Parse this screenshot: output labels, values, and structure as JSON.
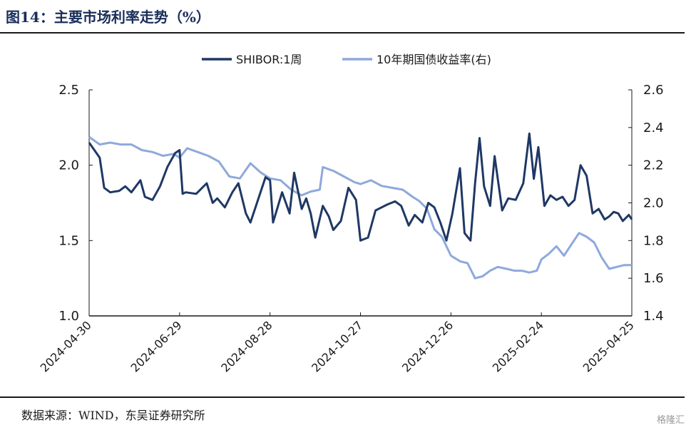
{
  "header": {
    "title": "图14：主要市场利率走势（%）"
  },
  "footer": {
    "source": "数据来源：WIND，东吴证券研究所",
    "watermark": "格隆汇"
  },
  "chart_data": {
    "type": "line",
    "title": "主要市场利率走势（%）",
    "x_ticks": [
      "2024-04-30",
      "2024-06-29",
      "2024-08-28",
      "2024-10-27",
      "2024-12-26",
      "2025-02-24",
      "2025-04-25"
    ],
    "y_left": {
      "range": [
        1.0,
        2.5
      ],
      "ticks": [
        "1.0",
        "1.5",
        "2.0",
        "2.5"
      ]
    },
    "y_right": {
      "range": [
        1.4,
        2.6
      ],
      "ticks": [
        "1.4",
        "1.6",
        "1.8",
        "2.0",
        "2.2",
        "2.4",
        "2.6"
      ]
    },
    "legend_position": "top-center",
    "series": [
      {
        "name": "SHIBOR:1周",
        "axis": "left",
        "color": "#1f3864",
        "x": [
          "2024-04-30",
          "2024-05-07",
          "2024-05-10",
          "2024-05-14",
          "2024-05-20",
          "2024-05-24",
          "2024-05-28",
          "2024-06-03",
          "2024-06-06",
          "2024-06-11",
          "2024-06-16",
          "2024-06-21",
          "2024-06-26",
          "2024-06-29",
          "2024-07-01",
          "2024-07-03",
          "2024-07-10",
          "2024-07-17",
          "2024-07-21",
          "2024-07-24",
          "2024-07-29",
          "2024-08-03",
          "2024-08-07",
          "2024-08-12",
          "2024-08-15",
          "2024-08-21",
          "2024-08-25",
          "2024-08-28",
          "2024-08-30",
          "2024-09-05",
          "2024-09-10",
          "2024-09-13",
          "2024-09-18",
          "2024-09-21",
          "2024-09-24",
          "2024-09-27",
          "2024-10-02",
          "2024-10-06",
          "2024-10-09",
          "2024-10-14",
          "2024-10-19",
          "2024-10-24",
          "2024-10-27",
          "2024-11-01",
          "2024-11-06",
          "2024-11-10",
          "2024-11-14",
          "2024-11-19",
          "2024-11-23",
          "2024-11-28",
          "2024-12-02",
          "2024-12-07",
          "2024-12-11",
          "2024-12-15",
          "2024-12-19",
          "2024-12-23",
          "2024-12-27",
          "2025-01-01",
          "2025-01-04",
          "2025-01-08",
          "2025-01-11",
          "2025-01-14",
          "2025-01-17",
          "2025-01-21",
          "2025-01-24",
          "2025-01-29",
          "2025-02-02",
          "2025-02-07",
          "2025-02-12",
          "2025-02-16",
          "2025-02-19",
          "2025-02-22",
          "2025-02-26",
          "2025-03-02",
          "2025-03-06",
          "2025-03-10",
          "2025-03-14",
          "2025-03-18",
          "2025-03-22",
          "2025-03-26",
          "2025-03-30",
          "2025-04-03",
          "2025-04-07",
          "2025-04-10",
          "2025-04-13",
          "2025-04-16",
          "2025-04-19",
          "2025-04-23",
          "2025-04-25"
        ],
        "values": [
          2.15,
          2.05,
          1.85,
          1.82,
          1.83,
          1.86,
          1.82,
          1.9,
          1.79,
          1.77,
          1.86,
          1.99,
          2.08,
          2.1,
          1.81,
          1.82,
          1.81,
          1.88,
          1.75,
          1.78,
          1.72,
          1.82,
          1.88,
          1.68,
          1.62,
          1.8,
          1.92,
          1.9,
          1.62,
          1.82,
          1.68,
          1.95,
          1.71,
          1.78,
          1.68,
          1.52,
          1.73,
          1.66,
          1.57,
          1.63,
          1.85,
          1.77,
          1.5,
          1.52,
          1.7,
          1.72,
          1.74,
          1.76,
          1.73,
          1.6,
          1.67,
          1.62,
          1.75,
          1.72,
          1.62,
          1.5,
          1.68,
          1.98,
          1.55,
          1.5,
          1.88,
          2.18,
          1.86,
          1.73,
          2.06,
          1.7,
          1.78,
          1.77,
          1.88,
          2.21,
          1.91,
          2.12,
          1.73,
          1.8,
          1.77,
          1.79,
          1.73,
          1.77,
          2.0,
          1.93,
          1.68,
          1.71,
          1.64,
          1.66,
          1.69,
          1.68,
          1.63,
          1.67,
          1.64
        ]
      },
      {
        "name": "10年期国债收益率(右)",
        "axis": "right",
        "color": "#8ea9db",
        "x": [
          "2024-04-30",
          "2024-05-07",
          "2024-05-14",
          "2024-05-21",
          "2024-05-28",
          "2024-06-04",
          "2024-06-11",
          "2024-06-18",
          "2024-06-25",
          "2024-06-29",
          "2024-07-04",
          "2024-07-11",
          "2024-07-18",
          "2024-07-25",
          "2024-08-01",
          "2024-08-08",
          "2024-08-15",
          "2024-08-22",
          "2024-08-28",
          "2024-09-04",
          "2024-09-11",
          "2024-09-18",
          "2024-09-24",
          "2024-09-30",
          "2024-10-02",
          "2024-10-09",
          "2024-10-16",
          "2024-10-23",
          "2024-10-27",
          "2024-11-03",
          "2024-11-10",
          "2024-11-17",
          "2024-11-24",
          "2024-12-01",
          "2024-12-05",
          "2024-12-10",
          "2024-12-15",
          "2024-12-20",
          "2024-12-26",
          "2025-01-01",
          "2025-01-06",
          "2025-01-11",
          "2025-01-16",
          "2025-01-21",
          "2025-01-26",
          "2025-02-01",
          "2025-02-06",
          "2025-02-11",
          "2025-02-16",
          "2025-02-21",
          "2025-02-24",
          "2025-03-01",
          "2025-03-06",
          "2025-03-11",
          "2025-03-16",
          "2025-03-21",
          "2025-03-26",
          "2025-03-31",
          "2025-04-05",
          "2025-04-10",
          "2025-04-15",
          "2025-04-20",
          "2025-04-25"
        ],
        "values": [
          2.35,
          2.31,
          2.32,
          2.31,
          2.31,
          2.28,
          2.27,
          2.25,
          2.26,
          2.24,
          2.29,
          2.27,
          2.25,
          2.22,
          2.14,
          2.13,
          2.21,
          2.16,
          2.13,
          2.12,
          2.07,
          2.04,
          2.06,
          2.07,
          2.19,
          2.17,
          2.14,
          2.11,
          2.1,
          2.12,
          2.09,
          2.08,
          2.07,
          2.03,
          2.01,
          1.97,
          1.86,
          1.82,
          1.72,
          1.69,
          1.68,
          1.6,
          1.61,
          1.64,
          1.66,
          1.65,
          1.64,
          1.64,
          1.63,
          1.64,
          1.7,
          1.73,
          1.77,
          1.72,
          1.78,
          1.84,
          1.82,
          1.79,
          1.71,
          1.65,
          1.66,
          1.67,
          1.67
        ]
      }
    ]
  }
}
